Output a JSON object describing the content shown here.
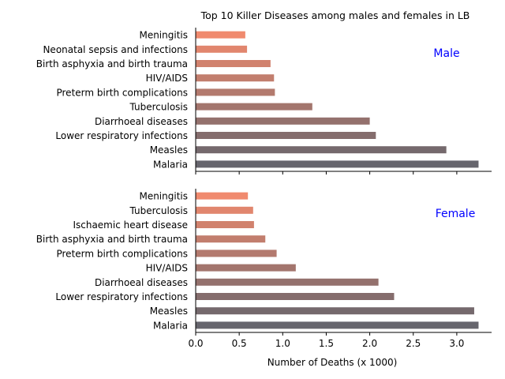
{
  "chart_data": {
    "type": "bar",
    "orientation": "horizontal",
    "title": "Top 10 Killer Diseases among males and females in LB",
    "xlabel": "Number of Deaths (x 1000)",
    "xlim": [
      0,
      3.4
    ],
    "xticks": [
      "0.0",
      "0.5",
      "1.0",
      "1.5",
      "2.0",
      "2.5",
      "3.0"
    ],
    "grid": false,
    "colors": {
      "low": "#f08a6e",
      "high": "#66656d",
      "label": "#0000ff"
    },
    "panels": [
      {
        "label": "Male",
        "categories": [
          "Meningitis",
          "Neonatal sepsis and infections",
          "Birth asphyxia and birth trauma",
          "HIV/AIDS",
          "Preterm birth complications",
          "Tuberculosis",
          "Diarrhoeal diseases",
          "Lower respiratory infections",
          "Measles",
          "Malaria"
        ],
        "values": [
          0.57,
          0.59,
          0.86,
          0.9,
          0.91,
          1.34,
          2.0,
          2.07,
          2.88,
          3.25
        ]
      },
      {
        "label": "Female",
        "categories": [
          "Meningitis",
          "Tuberculosis",
          "Ischaemic heart disease",
          "Birth asphyxia and birth trauma",
          "Preterm birth complications",
          "HIV/AIDS",
          "Diarrhoeal diseases",
          "Lower respiratory infections",
          "Measles",
          "Malaria"
        ],
        "values": [
          0.6,
          0.66,
          0.67,
          0.8,
          0.93,
          1.15,
          2.1,
          2.28,
          3.2,
          3.25
        ]
      }
    ]
  }
}
